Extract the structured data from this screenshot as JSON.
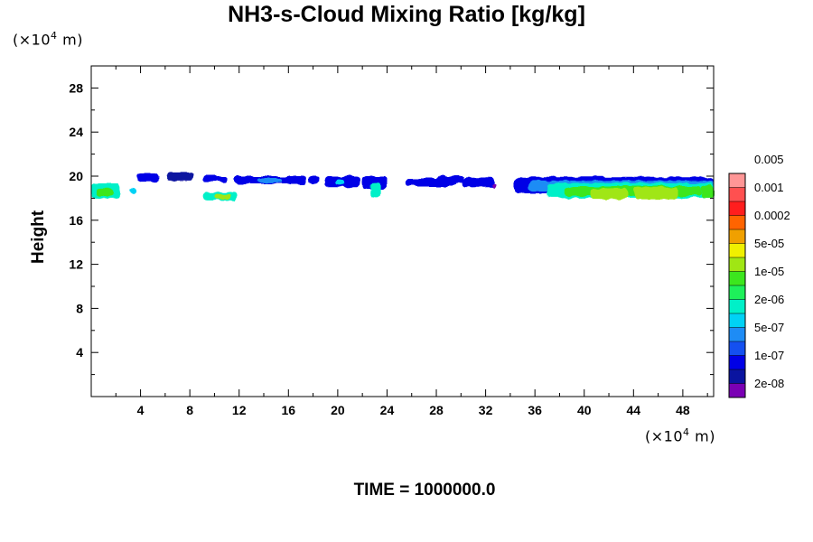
{
  "chart_data": {
    "type": "heatmap",
    "title": "NH3-s-Cloud Mixing Ratio [kg/kg]",
    "ylabel": "Height",
    "xlabel": "",
    "x_unit_prefix": "(×10",
    "x_unit_exp": "4",
    "x_unit_suffix": " m)",
    "y_unit_prefix": "(×10",
    "y_unit_exp": "4",
    "y_unit_suffix": " m)",
    "time_label": "TIME = 1000000.0",
    "xlim": [
      0,
      50.5
    ],
    "ylim": [
      0,
      30
    ],
    "x_ticks": [
      "4",
      "8",
      "12",
      "16",
      "20",
      "24",
      "28",
      "32",
      "36",
      "40",
      "44",
      "48"
    ],
    "x_tick_values": [
      4,
      8,
      12,
      16,
      20,
      24,
      28,
      32,
      36,
      40,
      44,
      48
    ],
    "y_ticks": [
      "4",
      "8",
      "12",
      "16",
      "20",
      "24",
      "28"
    ],
    "y_tick_values": [
      4,
      8,
      12,
      16,
      20,
      24,
      28
    ],
    "colorbar": {
      "colors": [
        "#7a00b4",
        "#0a14a0",
        "#0000e6",
        "#1450f0",
        "#1e8cf5",
        "#00d2f5",
        "#00f0c8",
        "#1ef05a",
        "#3ce61e",
        "#a0e614",
        "#f0f000",
        "#f0a000",
        "#ff6400",
        "#ff1e1e",
        "#ff5050",
        "#ff9696"
      ],
      "labels": [
        "2e-08",
        "1e-07",
        "5e-07",
        "2e-06",
        "1e-05",
        "5e-05",
        "0.0002",
        "0.001",
        "0.005"
      ],
      "label_bands": [
        1,
        3,
        5,
        7,
        9,
        11,
        13,
        15,
        17
      ]
    },
    "cloud_patches": [
      {
        "x0": 0.0,
        "x1": 2.3,
        "y0": 18.0,
        "y1": 19.3,
        "color_index": 6
      },
      {
        "x0": 0.4,
        "x1": 1.8,
        "y0": 18.2,
        "y1": 18.9,
        "color_index": 8
      },
      {
        "x0": 3.1,
        "x1": 3.6,
        "y0": 18.4,
        "y1": 18.9,
        "color_index": 5
      },
      {
        "x0": 3.7,
        "x1": 5.6,
        "y0": 19.5,
        "y1": 20.2,
        "color_index": 2
      },
      {
        "x0": 6.1,
        "x1": 8.3,
        "y0": 19.6,
        "y1": 20.3,
        "color_index": 1
      },
      {
        "x0": 9.0,
        "x1": 11.0,
        "y0": 19.5,
        "y1": 20.0,
        "color_index": 2
      },
      {
        "x0": 9.1,
        "x1": 11.8,
        "y0": 17.8,
        "y1": 18.5,
        "color_index": 6
      },
      {
        "x0": 10.0,
        "x1": 11.3,
        "y0": 17.9,
        "y1": 18.3,
        "color_index": 9
      },
      {
        "x0": 11.6,
        "x1": 17.5,
        "y0": 19.3,
        "y1": 20.0,
        "color_index": 2
      },
      {
        "x0": 13.5,
        "x1": 15.5,
        "y0": 19.4,
        "y1": 19.8,
        "color_index": 4
      },
      {
        "x0": 17.7,
        "x1": 18.5,
        "y0": 19.3,
        "y1": 20.0,
        "color_index": 2
      },
      {
        "x0": 18.9,
        "x1": 21.8,
        "y0": 19.0,
        "y1": 20.0,
        "color_index": 2
      },
      {
        "x0": 19.8,
        "x1": 20.6,
        "y0": 19.2,
        "y1": 19.7,
        "color_index": 5
      },
      {
        "x0": 22.0,
        "x1": 24.0,
        "y0": 18.8,
        "y1": 20.0,
        "color_index": 2
      },
      {
        "x0": 22.7,
        "x1": 23.5,
        "y0": 18.0,
        "y1": 19.5,
        "color_index": 6
      },
      {
        "x0": 25.6,
        "x1": 29.6,
        "y0": 19.1,
        "y1": 19.8,
        "color_index": 2
      },
      {
        "x0": 28.0,
        "x1": 30.3,
        "y0": 19.3,
        "y1": 20.0,
        "color_index": 2
      },
      {
        "x0": 30.2,
        "x1": 32.7,
        "y0": 19.0,
        "y1": 19.9,
        "color_index": 2
      },
      {
        "x0": 32.5,
        "x1": 32.9,
        "y0": 18.9,
        "y1": 19.4,
        "color_index": 0
      },
      {
        "x0": 34.3,
        "x1": 50.5,
        "y0": 18.4,
        "y1": 19.9,
        "color_index": 2
      },
      {
        "x0": 35.5,
        "x1": 50.5,
        "y0": 18.6,
        "y1": 19.6,
        "color_index": 4
      },
      {
        "x0": 37.0,
        "x1": 50.5,
        "y0": 18.0,
        "y1": 19.4,
        "color_index": 6
      },
      {
        "x0": 38.5,
        "x1": 49.5,
        "y0": 18.2,
        "y1": 19.1,
        "color_index": 8
      },
      {
        "x0": 40.5,
        "x1": 43.5,
        "y0": 17.9,
        "y1": 18.9,
        "color_index": 9
      },
      {
        "x0": 44.0,
        "x1": 47.5,
        "y0": 17.9,
        "y1": 19.0,
        "color_index": 9
      },
      {
        "x0": 49.5,
        "x1": 50.5,
        "y0": 18.0,
        "y1": 19.2,
        "color_index": 8
      }
    ]
  }
}
